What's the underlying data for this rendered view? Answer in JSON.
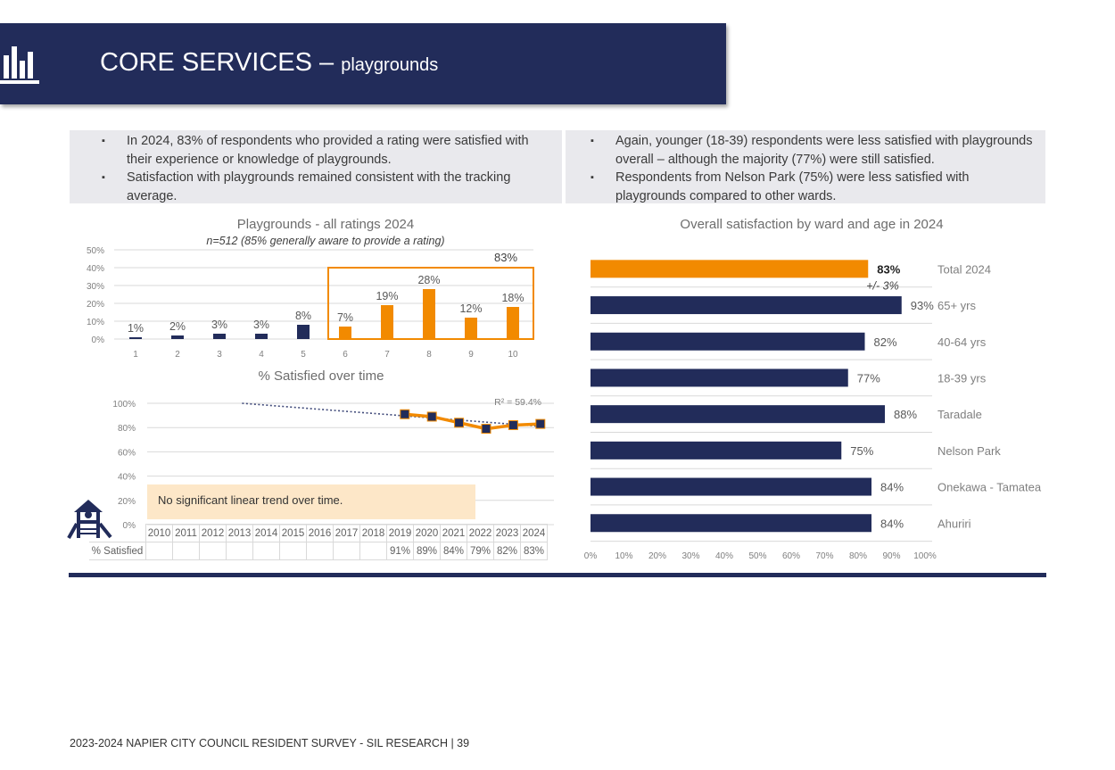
{
  "header": {
    "title": "CORE SERVICES –",
    "subtitle": "playgrounds",
    "icon": "bar-chart-icon"
  },
  "bullets_left": [
    "In 2024, 83% of respondents who provided a rating were satisfied with their experience or knowledge of playgrounds.",
    "Satisfaction with playgrounds remained consistent with the tracking average."
  ],
  "bullets_right": [
    "Again, younger (18-39) respondents were less satisfied with playgrounds overall – although the majority (77%) were still satisfied.",
    "Respondents from Nelson Park (75%) were less satisfied with playgrounds compared to other wards."
  ],
  "colors": {
    "navy": "#222c5a",
    "orange": "#f28a00",
    "note_bg": "#fde7c8"
  },
  "chart_data": [
    {
      "type": "bar",
      "title": "Playgrounds - all ratings 2024",
      "subtitle": "n=512 (85% generally aware to provide a rating)",
      "categories": [
        "1",
        "2",
        "3",
        "4",
        "5",
        "6",
        "7",
        "8",
        "9",
        "10"
      ],
      "values": [
        1,
        2,
        3,
        3,
        8,
        7,
        19,
        28,
        12,
        18
      ],
      "value_labels": [
        "1%",
        "2%",
        "3%",
        "3%",
        "8%",
        "7%",
        "19%",
        "28%",
        "12%",
        "18%"
      ],
      "highlight_from_index": 5,
      "highlight_label": "83%",
      "ylim": [
        0,
        50
      ],
      "yticks": [
        "0%",
        "10%",
        "20%",
        "30%",
        "40%",
        "50%"
      ],
      "grid": true
    },
    {
      "type": "line",
      "title": "% Satisfied over time",
      "x": [
        "2010",
        "2011",
        "2012",
        "2013",
        "2014",
        "2015",
        "2016",
        "2017",
        "2018",
        "2019",
        "2020",
        "2021",
        "2022",
        "2023",
        "2024"
      ],
      "series": [
        {
          "name": "% Satisfied",
          "values": [
            null,
            null,
            null,
            null,
            null,
            null,
            null,
            null,
            null,
            91,
            89,
            84,
            79,
            82,
            83
          ],
          "labels": [
            "",
            "",
            "",
            "",
            "",
            "",
            "",
            "",
            "",
            "91%",
            "89%",
            "84%",
            "79%",
            "82%",
            "83%"
          ]
        }
      ],
      "trend": {
        "start_year": "2013",
        "start_value": 100,
        "end_year": "2024",
        "end_value": 81
      },
      "r2_label": "R² = 59.4%",
      "ylim": [
        0,
        100
      ],
      "yticks": [
        "0%",
        "20%",
        "40%",
        "60%",
        "80%",
        "100%"
      ],
      "note": "No significant linear trend over time.",
      "grid": true
    },
    {
      "type": "bar",
      "orientation": "horizontal",
      "title": "Overall satisfaction by ward and age in 2024",
      "categories": [
        "Total 2024",
        "65+ yrs",
        "40-64 yrs",
        "18-39 yrs",
        "Taradale",
        "Nelson Park",
        "Onekawa - Tamatea",
        "Ahuriri"
      ],
      "values": [
        83,
        93,
        82,
        77,
        88,
        75,
        84,
        84
      ],
      "value_labels": [
        "83%",
        "93%",
        "82%",
        "77%",
        "88%",
        "75%",
        "84%",
        "84%"
      ],
      "highlight_index": 0,
      "margin_label": "+/- 3%",
      "xlim": [
        0,
        100
      ],
      "xticks": [
        "0%",
        "10%",
        "20%",
        "30%",
        "40%",
        "50%",
        "60%",
        "70%",
        "80%",
        "90%",
        "100%"
      ],
      "grid": true
    }
  ],
  "icons": {
    "playground": "playground-icon"
  },
  "footer": "2023-2024 NAPIER CITY COUNCIL RESIDENT SURVEY - SIL RESEARCH | 39"
}
